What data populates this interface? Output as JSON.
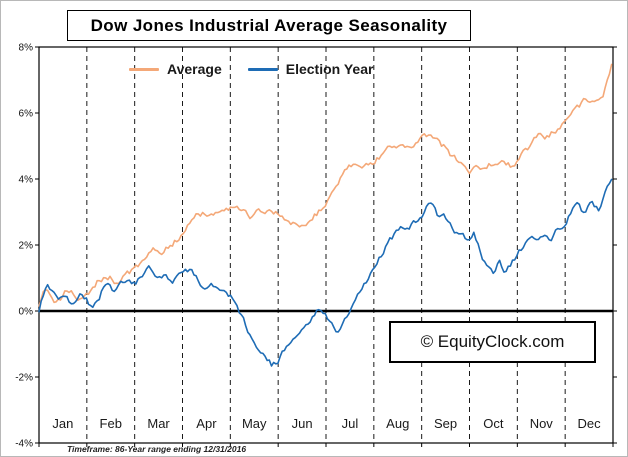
{
  "title": "Dow Jones Industrial Average Seasonality",
  "watermark": "© EquityClock.com",
  "footnote": "Timeframe: 86-Year range ending 12/31/2016",
  "legend": [
    {
      "label": "Average",
      "color": "#F4A878"
    },
    {
      "label": "Election Year",
      "color": "#1E6CB5"
    }
  ],
  "chart_data": {
    "type": "line",
    "title": "Dow Jones Industrial Average Seasonality",
    "xlabel": "",
    "ylabel": "",
    "x_unit": "month index 0-12 (fractional, Jan=0..1)",
    "months": [
      "Jan",
      "Feb",
      "Mar",
      "Apr",
      "May",
      "Jun",
      "Jul",
      "Aug",
      "Sep",
      "Oct",
      "Nov",
      "Dec"
    ],
    "ylim": [
      -4,
      8
    ],
    "yticks": [
      8,
      6,
      4,
      2,
      0,
      -2,
      -4
    ],
    "ytick_labels": [
      "8%",
      "6%",
      "4%",
      "2%",
      "0%",
      "-2%",
      "-4%"
    ],
    "grid": "vertical dashed month separators; bold solid line at 0%",
    "legend_position": "top inside",
    "zero_line": 0,
    "series": [
      {
        "name": "Average",
        "color": "#F4A878",
        "points": [
          [
            0,
            0.25
          ],
          [
            0.08,
            0.6
          ],
          [
            0.15,
            0.8
          ],
          [
            0.25,
            0.55
          ],
          [
            0.35,
            0.35
          ],
          [
            0.5,
            0.5
          ],
          [
            0.6,
            0.65
          ],
          [
            0.7,
            0.55
          ],
          [
            0.8,
            0.45
          ],
          [
            0.9,
            0.55
          ],
          [
            1,
            0.6
          ],
          [
            1.1,
            0.75
          ],
          [
            1.2,
            0.9
          ],
          [
            1.35,
            1.0
          ],
          [
            1.5,
            1.1
          ],
          [
            1.6,
            0.95
          ],
          [
            1.75,
            1.05
          ],
          [
            1.9,
            1.15
          ],
          [
            2,
            1.2
          ],
          [
            2.15,
            1.5
          ],
          [
            2.3,
            1.7
          ],
          [
            2.45,
            1.85
          ],
          [
            2.55,
            1.7
          ],
          [
            2.7,
            1.95
          ],
          [
            2.85,
            2.15
          ],
          [
            3,
            2.3
          ],
          [
            3.15,
            2.6
          ],
          [
            3.3,
            2.85
          ],
          [
            3.45,
            3.0
          ],
          [
            3.55,
            2.9
          ],
          [
            3.7,
            3.05
          ],
          [
            3.85,
            3.15
          ],
          [
            4,
            3.2
          ],
          [
            4.15,
            3.05
          ],
          [
            4.3,
            2.9
          ],
          [
            4.45,
            2.8
          ],
          [
            4.6,
            2.95
          ],
          [
            4.75,
            3.1
          ],
          [
            4.9,
            3.05
          ],
          [
            5,
            3.0
          ],
          [
            5.15,
            2.85
          ],
          [
            5.3,
            2.7
          ],
          [
            5.45,
            2.6
          ],
          [
            5.6,
            2.75
          ],
          [
            5.75,
            2.9
          ],
          [
            5.9,
            3.1
          ],
          [
            6,
            3.3
          ],
          [
            6.15,
            3.7
          ],
          [
            6.3,
            4.0
          ],
          [
            6.45,
            4.25
          ],
          [
            6.6,
            4.45
          ],
          [
            6.7,
            4.35
          ],
          [
            6.85,
            4.5
          ],
          [
            7,
            4.6
          ],
          [
            7.15,
            4.75
          ],
          [
            7.3,
            4.9
          ],
          [
            7.45,
            5.0
          ],
          [
            7.55,
            4.9
          ],
          [
            7.7,
            5.05
          ],
          [
            7.85,
            5.15
          ],
          [
            8,
            5.2
          ],
          [
            8.15,
            5.3
          ],
          [
            8.3,
            5.1
          ],
          [
            8.45,
            4.95
          ],
          [
            8.6,
            4.75
          ],
          [
            8.75,
            4.5
          ],
          [
            8.9,
            4.25
          ],
          [
            9,
            4.1
          ],
          [
            9.1,
            4.45
          ],
          [
            9.25,
            4.3
          ],
          [
            9.4,
            4.5
          ],
          [
            9.55,
            4.35
          ],
          [
            9.7,
            4.55
          ],
          [
            9.85,
            4.4
          ],
          [
            10,
            4.65
          ],
          [
            10.15,
            4.9
          ],
          [
            10.3,
            5.1
          ],
          [
            10.45,
            5.25
          ],
          [
            10.55,
            5.15
          ],
          [
            10.7,
            5.35
          ],
          [
            10.85,
            5.5
          ],
          [
            11,
            5.75
          ],
          [
            11.15,
            5.95
          ],
          [
            11.3,
            6.2
          ],
          [
            11.45,
            6.35
          ],
          [
            11.55,
            6.25
          ],
          [
            11.7,
            6.5
          ],
          [
            11.8,
            6.65
          ],
          [
            11.9,
            7.0
          ],
          [
            12,
            7.5
          ]
        ]
      },
      {
        "name": "Election Year",
        "color": "#1E6CB5",
        "points": [
          [
            0,
            0.0
          ],
          [
            0.08,
            0.45
          ],
          [
            0.18,
            0.75
          ],
          [
            0.3,
            0.45
          ],
          [
            0.42,
            0.2
          ],
          [
            0.55,
            0.5
          ],
          [
            0.68,
            0.3
          ],
          [
            0.8,
            0.5
          ],
          [
            0.9,
            0.6
          ],
          [
            1,
            0.45
          ],
          [
            1.1,
            0.15
          ],
          [
            1.2,
            0.35
          ],
          [
            1.3,
            0.6
          ],
          [
            1.45,
            0.85
          ],
          [
            1.55,
            0.65
          ],
          [
            1.7,
            0.8
          ],
          [
            1.85,
            0.95
          ],
          [
            2,
            0.75
          ],
          [
            2.15,
            1.0
          ],
          [
            2.3,
            1.3
          ],
          [
            2.45,
            0.95
          ],
          [
            2.6,
            1.1
          ],
          [
            2.75,
            0.85
          ],
          [
            2.9,
            1.0
          ],
          [
            3,
            1.05
          ],
          [
            3.15,
            1.2
          ],
          [
            3.3,
            0.9
          ],
          [
            3.45,
            0.65
          ],
          [
            3.6,
            0.8
          ],
          [
            3.75,
            0.6
          ],
          [
            3.9,
            0.5
          ],
          [
            4,
            0.4
          ],
          [
            4.15,
            0.05
          ],
          [
            4.3,
            -0.35
          ],
          [
            4.45,
            -0.75
          ],
          [
            4.6,
            -1.1
          ],
          [
            4.75,
            -1.5
          ],
          [
            4.88,
            -1.7
          ],
          [
            5,
            -1.5
          ],
          [
            5.12,
            -1.25
          ],
          [
            5.25,
            -0.95
          ],
          [
            5.4,
            -0.7
          ],
          [
            5.55,
            -0.45
          ],
          [
            5.7,
            -0.2
          ],
          [
            5.85,
            0.05
          ],
          [
            6,
            -0.1
          ],
          [
            6.12,
            -0.4
          ],
          [
            6.25,
            -0.65
          ],
          [
            6.4,
            -0.35
          ],
          [
            6.55,
            0.1
          ],
          [
            6.7,
            0.45
          ],
          [
            6.85,
            0.8
          ],
          [
            7,
            1.15
          ],
          [
            7.12,
            1.5
          ],
          [
            7.25,
            1.9
          ],
          [
            7.4,
            2.2
          ],
          [
            7.55,
            2.5
          ],
          [
            7.7,
            2.4
          ],
          [
            7.85,
            2.7
          ],
          [
            8,
            2.9
          ],
          [
            8.1,
            3.1
          ],
          [
            8.2,
            3.35
          ],
          [
            8.32,
            2.95
          ],
          [
            8.45,
            3.05
          ],
          [
            8.6,
            2.7
          ],
          [
            8.75,
            2.4
          ],
          [
            8.9,
            2.15
          ],
          [
            9,
            2.0
          ],
          [
            9.1,
            2.25
          ],
          [
            9.2,
            1.85
          ],
          [
            9.35,
            1.35
          ],
          [
            9.5,
            1.0
          ],
          [
            9.62,
            1.4
          ],
          [
            9.75,
            1.1
          ],
          [
            9.88,
            1.45
          ],
          [
            10,
            1.75
          ],
          [
            10.12,
            2.0
          ],
          [
            10.25,
            2.2
          ],
          [
            10.4,
            2.05
          ],
          [
            10.55,
            2.3
          ],
          [
            10.7,
            2.15
          ],
          [
            10.85,
            2.45
          ],
          [
            11,
            2.6
          ],
          [
            11.12,
            2.95
          ],
          [
            11.25,
            3.15
          ],
          [
            11.4,
            2.95
          ],
          [
            11.55,
            3.25
          ],
          [
            11.7,
            3.1
          ],
          [
            11.85,
            3.55
          ],
          [
            12,
            4.05
          ]
        ]
      }
    ]
  }
}
